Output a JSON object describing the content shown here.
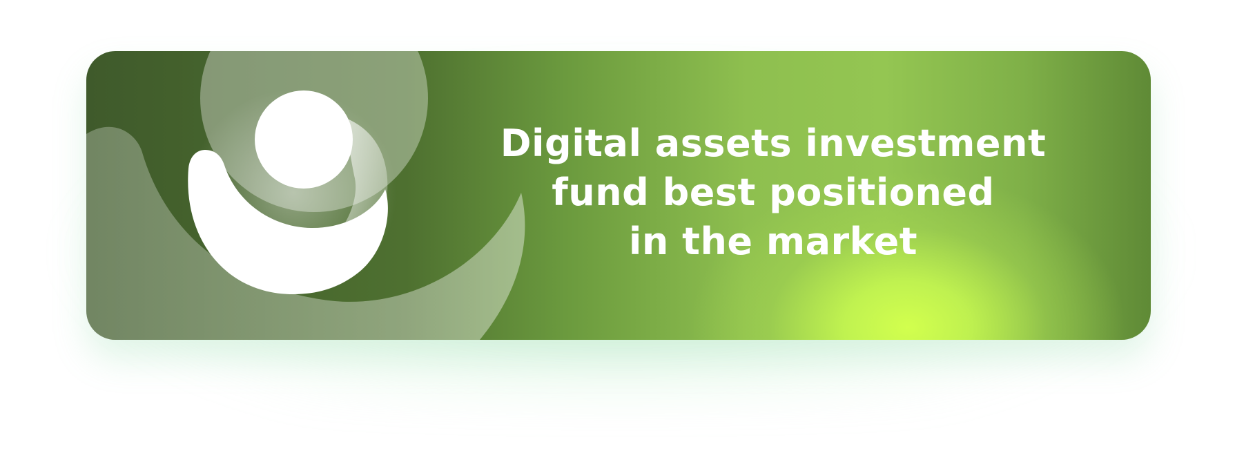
{
  "banner": {
    "headline_lines": [
      "Digital assets investment",
      "fund best positioned",
      "in the market"
    ],
    "logo_icon": "abstract-swirl-logo-icon"
  },
  "colors": {
    "dark_green": "#3f5a2b",
    "mid_green": "#8ebf4f",
    "lime_highlight": "#d2ff4e",
    "text": "#ffffff"
  }
}
